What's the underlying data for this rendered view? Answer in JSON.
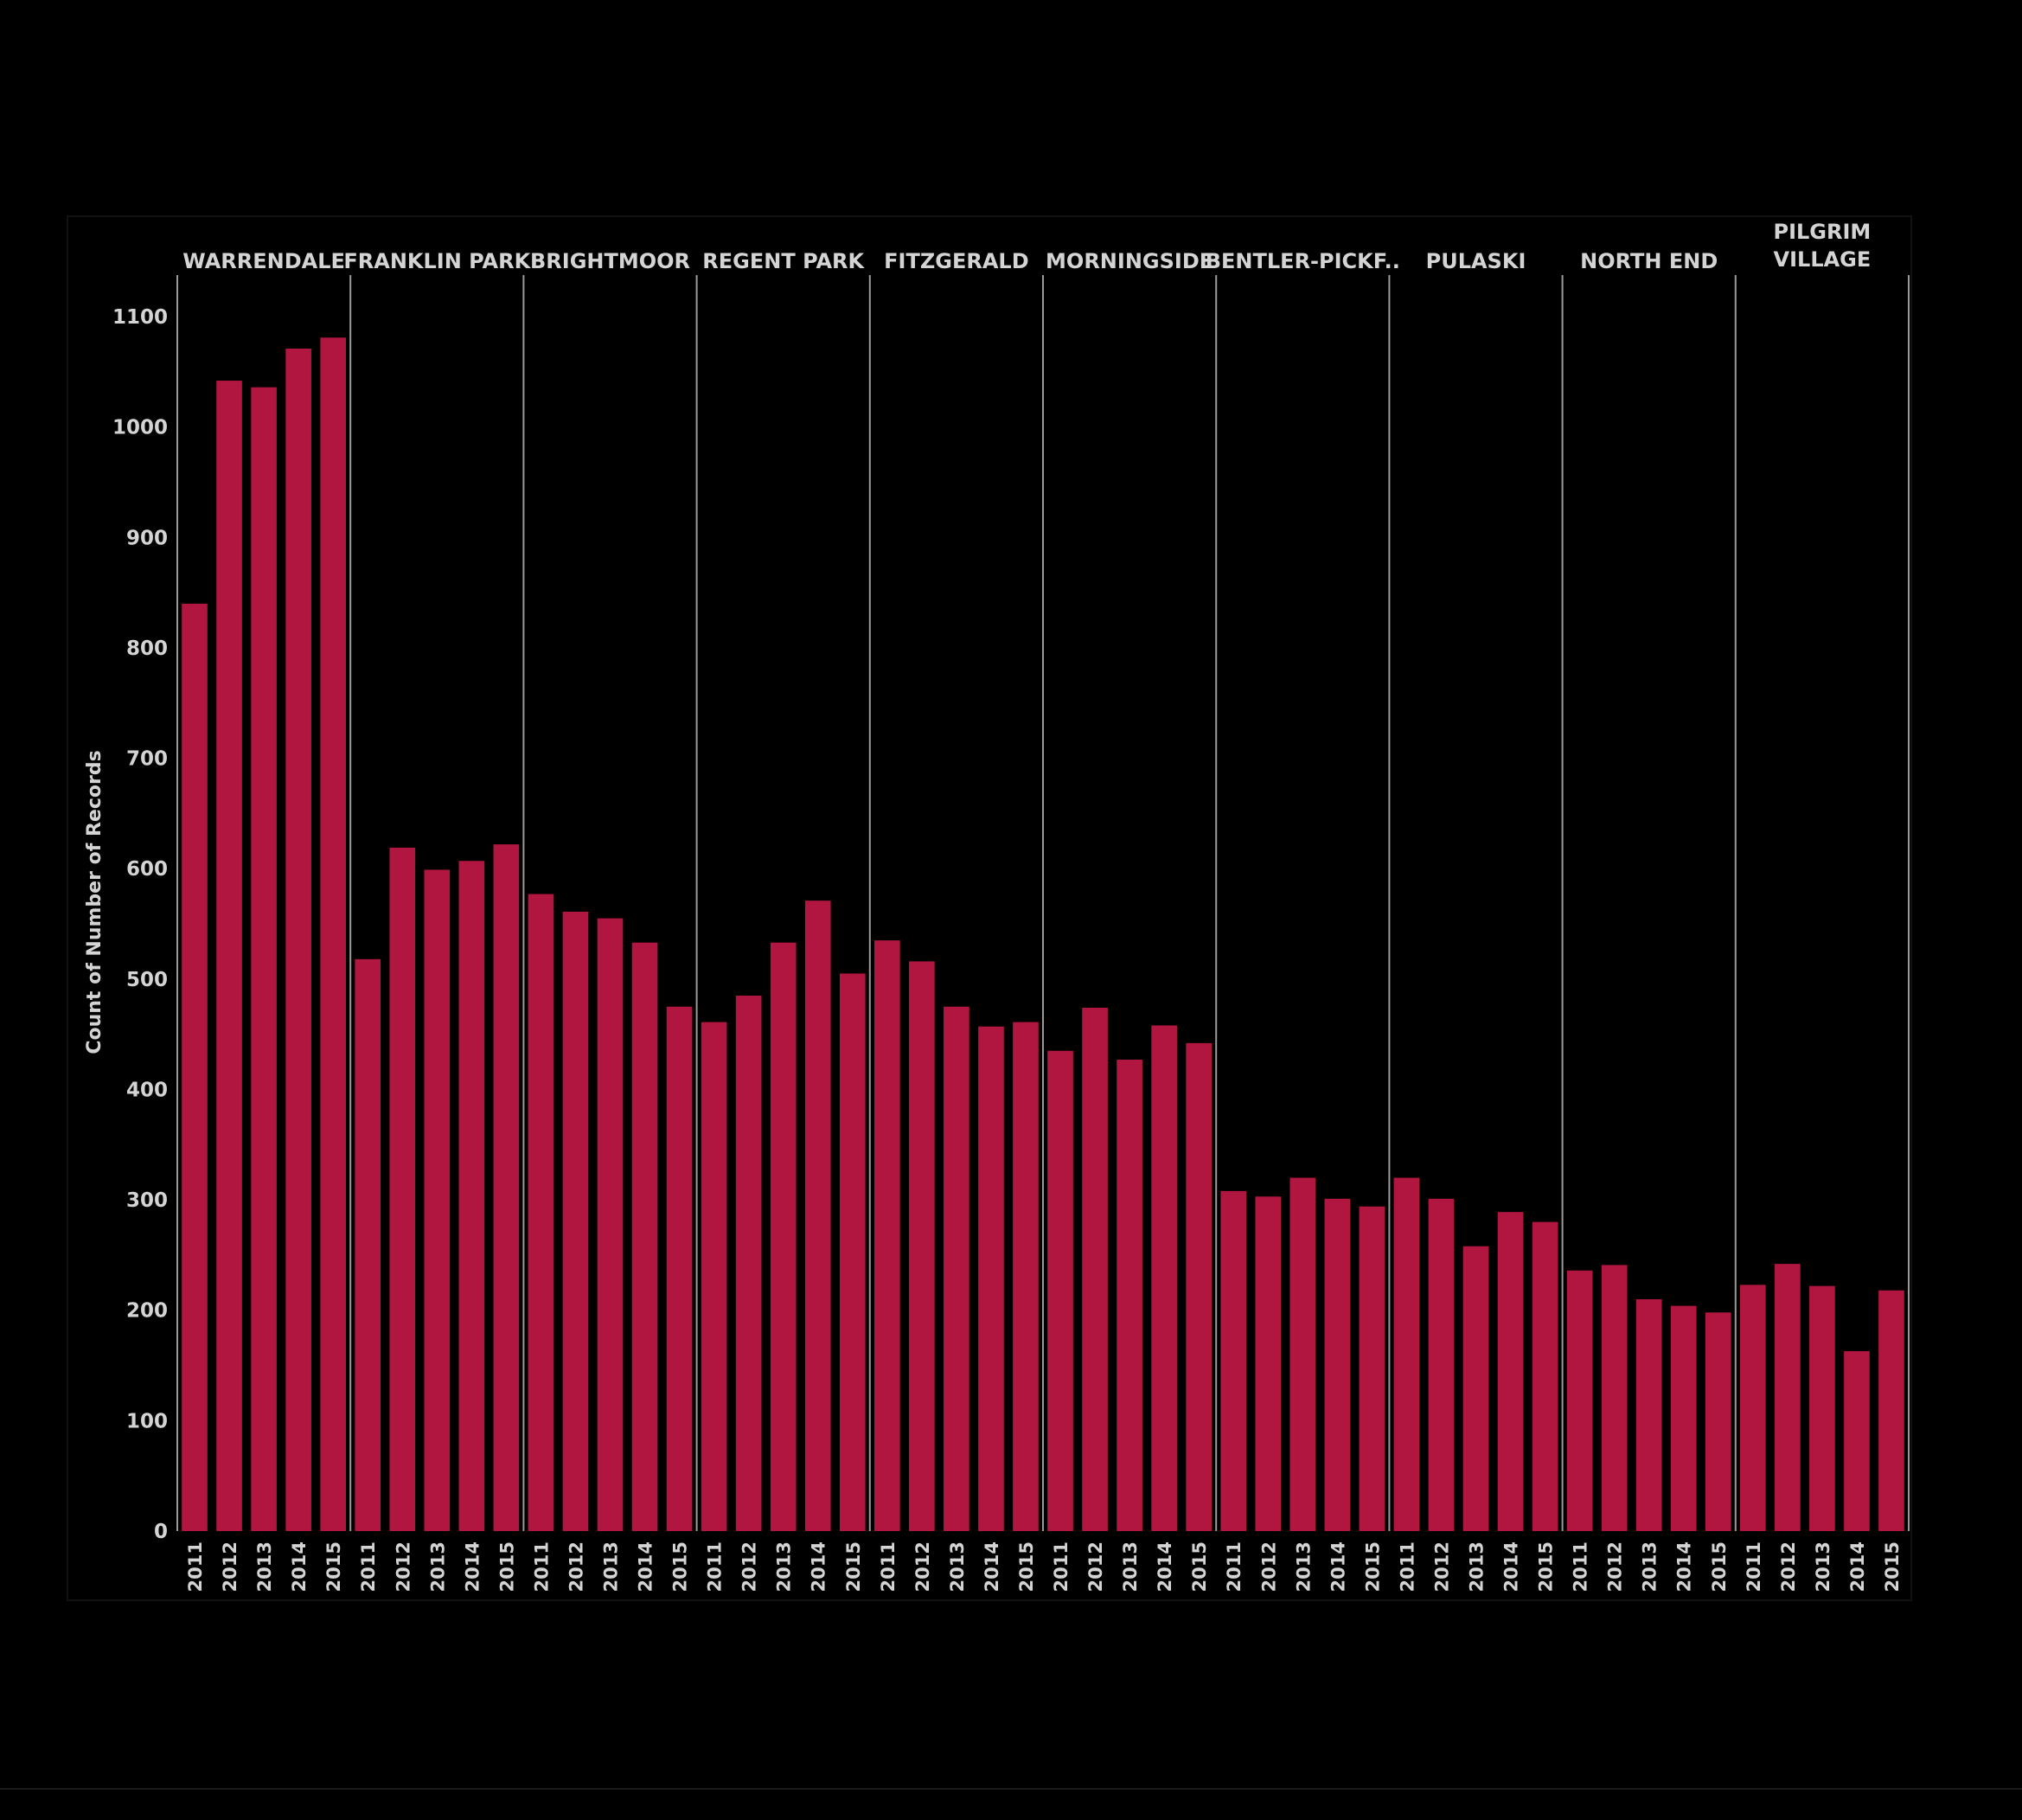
{
  "colors": {
    "background": "#000000",
    "bar": "#b0163f",
    "text": "#d4d4d4",
    "divider": "#9a9a9a",
    "frame": "#111111"
  },
  "chart_data": {
    "type": "bar",
    "title": "",
    "ylabel": "Count of Number of Records",
    "xlabel": "",
    "ylim": [
      0,
      1100
    ],
    "yticks": [
      0,
      100,
      200,
      300,
      400,
      500,
      600,
      700,
      800,
      900,
      1000,
      1100
    ],
    "years": [
      "2011",
      "2012",
      "2013",
      "2014",
      "2015"
    ],
    "grid": false,
    "panels": [
      {
        "name": "WARRENDALE",
        "values": [
          840,
          1042,
          1036,
          1071,
          1081
        ]
      },
      {
        "name": "FRANKLIN PARK",
        "values": [
          518,
          619,
          599,
          607,
          622
        ]
      },
      {
        "name": "BRIGHTMOOR",
        "values": [
          577,
          561,
          555,
          533,
          475
        ]
      },
      {
        "name": "REGENT PARK",
        "values": [
          461,
          485,
          533,
          571,
          505
        ]
      },
      {
        "name": "FITZGERALD",
        "values": [
          535,
          516,
          475,
          457,
          461
        ]
      },
      {
        "name": "MORNINGSIDE",
        "values": [
          435,
          474,
          427,
          458,
          442
        ]
      },
      {
        "name": "BENTLER-PICKF..",
        "values": [
          308,
          303,
          320,
          301,
          294
        ]
      },
      {
        "name": "PULASKI",
        "values": [
          320,
          301,
          258,
          289,
          280
        ]
      },
      {
        "name": "NORTH END",
        "values": [
          236,
          241,
          210,
          204,
          198
        ]
      },
      {
        "name": "PILGRIM\nVILLAGE",
        "values": [
          223,
          242,
          222,
          163,
          218
        ]
      }
    ]
  }
}
